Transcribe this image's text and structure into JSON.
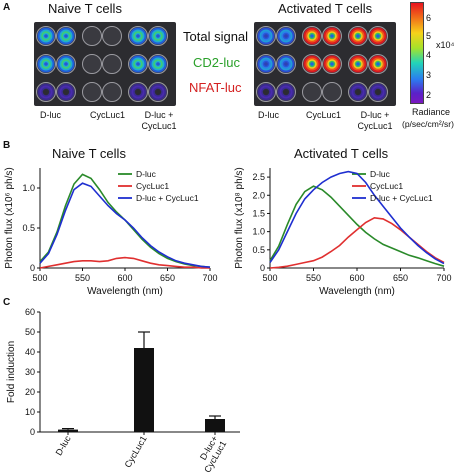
{
  "panel_a": {
    "letter": "A",
    "naive_title": "Naive T cells",
    "activated_title": "Activated T cells",
    "row_labels": [
      "Total signal",
      "CD2-luc",
      "NFAT-luc"
    ],
    "row_label_colors": [
      "#111111",
      "#2aa02a",
      "#d42020"
    ],
    "column_labels": [
      "D-luc",
      "CycLuc1",
      "D-luc +\nCycLuc1"
    ],
    "colorbar": {
      "ticks": [
        "6",
        "5",
        "4",
        "3",
        "2"
      ],
      "scale_label": "x10⁴",
      "unit_label_1": "Radiance",
      "unit_label_2": "(p/sec/cm²/sr)"
    }
  },
  "panel_b": {
    "letter": "B",
    "naive_title": "Naive T cells",
    "activated_title": "Activated T cells"
  },
  "panel_c": {
    "letter": "C"
  },
  "chart_data": [
    {
      "type": "line",
      "title": "Naive T cells",
      "xlabel": "Wavelength (nm)",
      "ylabel": "Photon flux (x10⁶ ph/s)",
      "xlim": [
        500,
        700
      ],
      "ylim": [
        0,
        1.25
      ],
      "xticks": [
        500,
        550,
        600,
        650,
        700
      ],
      "yticks": [
        0,
        0.5,
        1.0
      ],
      "x": [
        500,
        510,
        520,
        530,
        540,
        550,
        560,
        570,
        580,
        590,
        600,
        610,
        620,
        630,
        640,
        650,
        660,
        670,
        680,
        690,
        700
      ],
      "series": [
        {
          "name": "D-luc",
          "color": "#2a8a2a",
          "values": [
            0.08,
            0.2,
            0.45,
            0.78,
            1.05,
            1.17,
            1.12,
            0.98,
            0.82,
            0.7,
            0.6,
            0.48,
            0.36,
            0.26,
            0.18,
            0.12,
            0.08,
            0.05,
            0.03,
            0.02,
            0.01
          ]
        },
        {
          "name": "CycLuc1",
          "color": "#e03030",
          "values": [
            0.0,
            0.02,
            0.04,
            0.06,
            0.08,
            0.09,
            0.09,
            0.08,
            0.09,
            0.12,
            0.13,
            0.12,
            0.09,
            0.06,
            0.04,
            0.03,
            0.02,
            0.01,
            0.01,
            0.0,
            0.0
          ]
        },
        {
          "name": "D-luc + CycLuc1",
          "color": "#1f2fd0",
          "values": [
            0.06,
            0.18,
            0.42,
            0.72,
            0.98,
            1.06,
            1.02,
            0.9,
            0.78,
            0.68,
            0.6,
            0.5,
            0.38,
            0.28,
            0.2,
            0.14,
            0.09,
            0.06,
            0.04,
            0.02,
            0.01
          ]
        }
      ],
      "legend": "top-right"
    },
    {
      "type": "line",
      "title": "Activated T cells",
      "xlabel": "Wavelength (nm)",
      "ylabel": "Photon flux (x10⁸ ph/s)",
      "xlim": [
        500,
        700
      ],
      "ylim": [
        0,
        2.75
      ],
      "xticks": [
        500,
        550,
        600,
        650,
        700
      ],
      "yticks": [
        0,
        0.5,
        1.0,
        1.5,
        2.0,
        2.5
      ],
      "x": [
        500,
        510,
        520,
        530,
        540,
        550,
        560,
        570,
        580,
        590,
        600,
        610,
        620,
        630,
        640,
        650,
        660,
        670,
        680,
        690,
        700
      ],
      "series": [
        {
          "name": "D-luc",
          "color": "#2a8a2a",
          "values": [
            0.2,
            0.6,
            1.2,
            1.75,
            2.1,
            2.25,
            2.15,
            1.95,
            1.7,
            1.45,
            1.2,
            0.98,
            0.8,
            0.65,
            0.55,
            0.45,
            0.35,
            0.28,
            0.2,
            0.12,
            0.05
          ]
        },
        {
          "name": "CycLuc1",
          "color": "#e03030",
          "values": [
            0.0,
            0.02,
            0.05,
            0.1,
            0.15,
            0.2,
            0.3,
            0.45,
            0.62,
            0.85,
            1.05,
            1.25,
            1.38,
            1.35,
            1.22,
            1.05,
            0.85,
            0.65,
            0.45,
            0.28,
            0.15
          ]
        },
        {
          "name": "D-luc + CycLuc1",
          "color": "#1f2fd0",
          "values": [
            0.15,
            0.5,
            1.0,
            1.5,
            1.9,
            2.15,
            2.35,
            2.5,
            2.6,
            2.65,
            2.6,
            2.35,
            2.0,
            1.7,
            1.4,
            1.1,
            0.85,
            0.62,
            0.42,
            0.25,
            0.12
          ]
        }
      ],
      "legend": "top-right"
    },
    {
      "type": "bar",
      "ylabel": "Fold induction",
      "categories": [
        "D-luc",
        "CycLuc1",
        "D-luc+\nCycLuc1"
      ],
      "values": [
        1.2,
        42,
        6.5
      ],
      "errors": [
        0.5,
        8,
        1.5
      ],
      "ylim": [
        0,
        60
      ],
      "yticks": [
        0,
        10,
        20,
        30,
        40,
        50,
        60
      ]
    }
  ]
}
